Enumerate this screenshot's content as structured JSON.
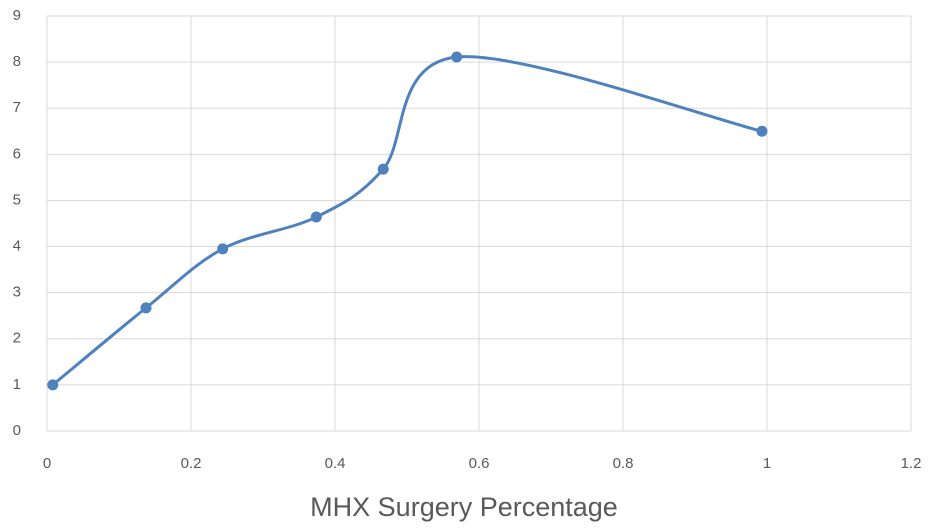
{
  "chart_data": {
    "type": "scatter",
    "smooth": true,
    "xlabel": "MHX Surgery Percentage",
    "x": [
      0.008,
      0.1375,
      0.244,
      0.374,
      0.467,
      0.569,
      0.993
    ],
    "series": [
      {
        "color": "#4f81bd",
        "values": [
          1.0,
          2.67,
          3.95,
          4.64,
          5.68,
          8.11,
          6.5
        ]
      }
    ],
    "xlim": [
      0,
      1.2
    ],
    "xticks": [
      0,
      0.2,
      0.4,
      0.6,
      0.8,
      1,
      1.2
    ],
    "ylim": [
      0,
      9
    ],
    "yticks": [
      0,
      1,
      2,
      3,
      4,
      5,
      6,
      7,
      8,
      9
    ],
    "grid": true
  }
}
